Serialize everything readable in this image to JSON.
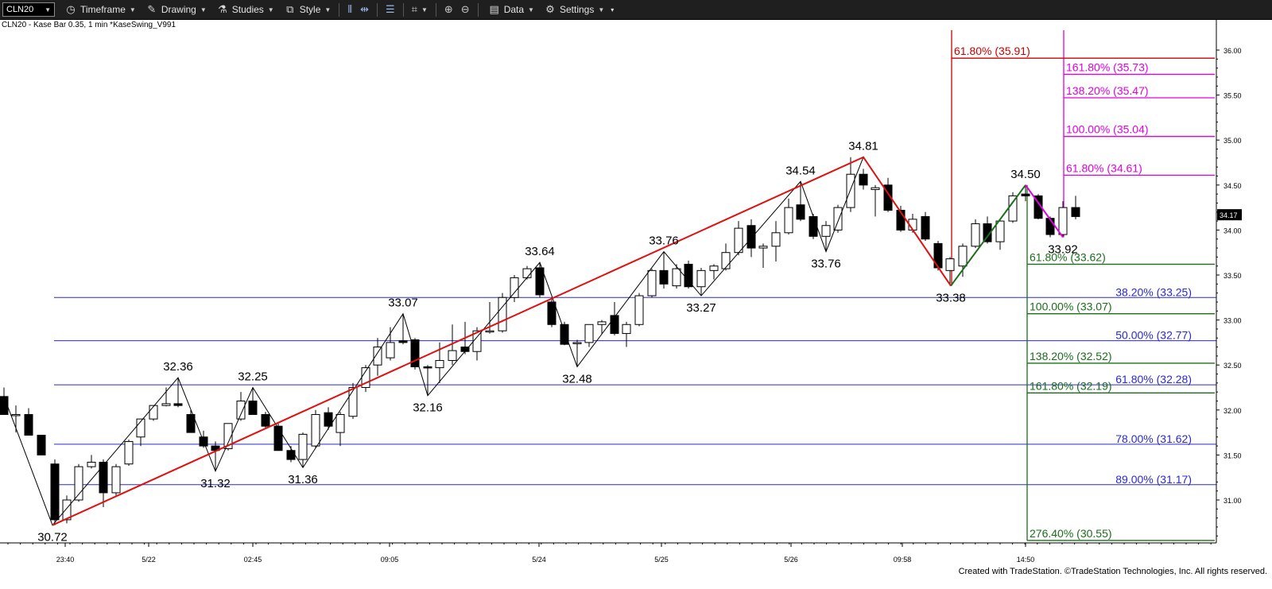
{
  "toolbar": {
    "symbol": "CLN20",
    "timeframe": "Timeframe",
    "drawing": "Drawing",
    "studies": "Studies",
    "style": "Style",
    "data": "Data",
    "settings": "Settings"
  },
  "chart_title": "CLN20 - Kase Bar 0.35, 1 min  *KaseSwing_V991",
  "footer": "Created with TradeStation. ©TradeStation Technologies, Inc. All rights reserved.",
  "colors": {
    "blue_fib": "#2a2ad0",
    "green_fib": "#1a6e1a",
    "magenta_fib": "#e000e0",
    "red_line": "#e01010",
    "red_fib": "#cc0000"
  },
  "chart_data": {
    "type": "candlestick",
    "ylim": [
      30.3,
      36.2
    ],
    "y_ticks": [
      "36.00",
      "35.50",
      "35.00",
      "34.50",
      "34.00",
      "33.50",
      "33.00",
      "32.50",
      "32.00",
      "31.50",
      "31.00"
    ],
    "last_price": "34.17",
    "x_tick_labels": [
      {
        "label": "23:40",
        "x": 82
      },
      {
        "label": "5/22",
        "x": 187
      },
      {
        "label": "02:45",
        "x": 318
      },
      {
        "label": "09:05",
        "x": 490
      },
      {
        "label": "5/24",
        "x": 678
      },
      {
        "label": "5/25",
        "x": 832
      },
      {
        "label": "5/26",
        "x": 995
      },
      {
        "label": "09:58",
        "x": 1135
      },
      {
        "label": "14:50",
        "x": 1290
      }
    ],
    "candles": [
      {
        "x": 5,
        "o": 32.15,
        "h": 32.25,
        "l": 31.95,
        "c": 31.95
      },
      {
        "x": 20,
        "o": 31.95,
        "h": 32.05,
        "l": 31.75,
        "c": 31.95
      },
      {
        "x": 36,
        "o": 31.95,
        "h": 32.02,
        "l": 31.72,
        "c": 31.72
      },
      {
        "x": 52,
        "o": 31.72,
        "h": 31.72,
        "l": 31.5,
        "c": 31.5
      },
      {
        "x": 69,
        "o": 31.4,
        "h": 31.45,
        "l": 30.72,
        "c": 30.78
      },
      {
        "x": 84,
        "o": 30.78,
        "h": 31.05,
        "l": 30.74,
        "c": 31.0
      },
      {
        "x": 99,
        "o": 31.0,
        "h": 31.4,
        "l": 30.98,
        "c": 31.37
      },
      {
        "x": 115,
        "o": 31.37,
        "h": 31.5,
        "l": 31.35,
        "c": 31.42
      },
      {
        "x": 130,
        "o": 31.42,
        "h": 31.45,
        "l": 30.92,
        "c": 31.08
      },
      {
        "x": 146,
        "o": 31.08,
        "h": 31.4,
        "l": 31.05,
        "c": 31.37
      },
      {
        "x": 162,
        "o": 31.4,
        "h": 31.67,
        "l": 31.38,
        "c": 31.65
      },
      {
        "x": 177,
        "o": 31.7,
        "h": 31.9,
        "l": 31.6,
        "c": 31.9
      },
      {
        "x": 193,
        "o": 31.9,
        "h": 32.05,
        "l": 31.88,
        "c": 32.05
      },
      {
        "x": 209,
        "o": 32.05,
        "h": 32.25,
        "l": 32.04,
        "c": 32.07
      },
      {
        "x": 224,
        "o": 32.07,
        "h": 32.36,
        "l": 32.03,
        "c": 32.05
      },
      {
        "x": 240,
        "o": 31.95,
        "h": 32.0,
        "l": 31.75,
        "c": 31.75
      },
      {
        "x": 256,
        "o": 31.7,
        "h": 31.77,
        "l": 31.58,
        "c": 31.6
      },
      {
        "x": 271,
        "o": 31.6,
        "h": 31.65,
        "l": 31.32,
        "c": 31.55
      },
      {
        "x": 287,
        "o": 31.57,
        "h": 31.85,
        "l": 31.55,
        "c": 31.85
      },
      {
        "x": 303,
        "o": 31.9,
        "h": 32.2,
        "l": 31.88,
        "c": 32.1
      },
      {
        "x": 318,
        "o": 32.1,
        "h": 32.25,
        "l": 31.95,
        "c": 31.95
      },
      {
        "x": 334,
        "o": 31.95,
        "h": 31.98,
        "l": 31.8,
        "c": 31.82
      },
      {
        "x": 350,
        "o": 31.82,
        "h": 31.85,
        "l": 31.55,
        "c": 31.55
      },
      {
        "x": 366,
        "o": 31.55,
        "h": 31.6,
        "l": 31.42,
        "c": 31.45
      },
      {
        "x": 381,
        "o": 31.45,
        "h": 31.75,
        "l": 31.36,
        "c": 31.73
      },
      {
        "x": 397,
        "o": 31.6,
        "h": 32.0,
        "l": 31.58,
        "c": 31.95
      },
      {
        "x": 413,
        "o": 31.97,
        "h": 32.03,
        "l": 31.78,
        "c": 31.82
      },
      {
        "x": 428,
        "o": 31.75,
        "h": 31.98,
        "l": 31.6,
        "c": 31.95
      },
      {
        "x": 444,
        "o": 31.93,
        "h": 32.3,
        "l": 31.9,
        "c": 32.25
      },
      {
        "x": 460,
        "o": 32.25,
        "h": 32.5,
        "l": 32.2,
        "c": 32.47
      },
      {
        "x": 475,
        "o": 32.5,
        "h": 32.8,
        "l": 32.38,
        "c": 32.7
      },
      {
        "x": 491,
        "o": 32.58,
        "h": 32.92,
        "l": 32.55,
        "c": 32.75
      },
      {
        "x": 507,
        "o": 32.77,
        "h": 33.07,
        "l": 32.73,
        "c": 32.75
      },
      {
        "x": 522,
        "o": 32.78,
        "h": 32.8,
        "l": 32.45,
        "c": 32.48
      },
      {
        "x": 538,
        "o": 32.48,
        "h": 32.5,
        "l": 32.16,
        "c": 32.47
      },
      {
        "x": 553,
        "o": 32.47,
        "h": 32.75,
        "l": 32.3,
        "c": 32.55
      },
      {
        "x": 569,
        "o": 32.55,
        "h": 32.95,
        "l": 32.5,
        "c": 32.66
      },
      {
        "x": 585,
        "o": 32.7,
        "h": 32.98,
        "l": 32.62,
        "c": 32.65
      },
      {
        "x": 600,
        "o": 32.65,
        "h": 32.92,
        "l": 32.55,
        "c": 32.88
      },
      {
        "x": 616,
        "o": 32.88,
        "h": 33.2,
        "l": 32.85,
        "c": 32.88
      },
      {
        "x": 632,
        "o": 32.88,
        "h": 33.3,
        "l": 32.86,
        "c": 33.25
      },
      {
        "x": 647,
        "o": 33.25,
        "h": 33.5,
        "l": 33.2,
        "c": 33.47
      },
      {
        "x": 663,
        "o": 33.47,
        "h": 33.6,
        "l": 33.45,
        "c": 33.57
      },
      {
        "x": 679,
        "o": 33.58,
        "h": 33.64,
        "l": 33.25,
        "c": 33.28
      },
      {
        "x": 694,
        "o": 33.2,
        "h": 33.25,
        "l": 32.92,
        "c": 32.95
      },
      {
        "x": 710,
        "o": 32.95,
        "h": 32.98,
        "l": 32.72,
        "c": 32.73
      },
      {
        "x": 726,
        "o": 32.75,
        "h": 32.78,
        "l": 32.48,
        "c": 32.75
      },
      {
        "x": 741,
        "o": 32.75,
        "h": 32.95,
        "l": 32.7,
        "c": 32.95
      },
      {
        "x": 757,
        "o": 32.95,
        "h": 33.0,
        "l": 32.85,
        "c": 32.98
      },
      {
        "x": 773,
        "o": 33.05,
        "h": 33.2,
        "l": 32.83,
        "c": 32.85
      },
      {
        "x": 788,
        "o": 32.85,
        "h": 32.98,
        "l": 32.7,
        "c": 32.95
      },
      {
        "x": 804,
        "o": 32.95,
        "h": 33.3,
        "l": 32.93,
        "c": 33.27
      },
      {
        "x": 820,
        "o": 33.27,
        "h": 33.57,
        "l": 33.25,
        "c": 33.55
      },
      {
        "x": 835,
        "o": 33.55,
        "h": 33.76,
        "l": 33.35,
        "c": 33.4
      },
      {
        "x": 851,
        "o": 33.38,
        "h": 33.62,
        "l": 33.35,
        "c": 33.57
      },
      {
        "x": 866,
        "o": 33.62,
        "h": 33.66,
        "l": 33.35,
        "c": 33.37
      },
      {
        "x": 882,
        "o": 33.37,
        "h": 33.58,
        "l": 33.27,
        "c": 33.55
      },
      {
        "x": 898,
        "o": 33.55,
        "h": 33.62,
        "l": 33.45,
        "c": 33.6
      },
      {
        "x": 913,
        "o": 33.57,
        "h": 33.85,
        "l": 33.55,
        "c": 33.75
      },
      {
        "x": 929,
        "o": 33.75,
        "h": 34.1,
        "l": 33.72,
        "c": 34.02
      },
      {
        "x": 945,
        "o": 34.05,
        "h": 34.12,
        "l": 33.7,
        "c": 33.8
      },
      {
        "x": 960,
        "o": 33.8,
        "h": 33.85,
        "l": 33.58,
        "c": 33.82
      },
      {
        "x": 976,
        "o": 33.82,
        "h": 34.1,
        "l": 33.65,
        "c": 33.97
      },
      {
        "x": 992,
        "o": 33.97,
        "h": 34.35,
        "l": 33.95,
        "c": 34.25
      },
      {
        "x": 1007,
        "o": 34.28,
        "h": 34.54,
        "l": 34.1,
        "c": 34.12
      },
      {
        "x": 1023,
        "o": 34.15,
        "h": 34.18,
        "l": 33.9,
        "c": 33.93
      },
      {
        "x": 1039,
        "o": 33.93,
        "h": 34.1,
        "l": 33.76,
        "c": 34.05
      },
      {
        "x": 1054,
        "o": 34.0,
        "h": 34.28,
        "l": 33.97,
        "c": 34.25
      },
      {
        "x": 1070,
        "o": 34.25,
        "h": 34.81,
        "l": 34.2,
        "c": 34.62
      },
      {
        "x": 1086,
        "o": 34.62,
        "h": 34.68,
        "l": 34.45,
        "c": 34.5
      },
      {
        "x": 1101,
        "o": 34.45,
        "h": 34.5,
        "l": 34.15,
        "c": 34.47
      },
      {
        "x": 1117,
        "o": 34.5,
        "h": 34.58,
        "l": 34.2,
        "c": 34.22
      },
      {
        "x": 1133,
        "o": 34.22,
        "h": 34.27,
        "l": 33.98,
        "c": 34.0
      },
      {
        "x": 1148,
        "o": 34.0,
        "h": 34.18,
        "l": 33.97,
        "c": 34.12
      },
      {
        "x": 1164,
        "o": 34.15,
        "h": 34.2,
        "l": 33.88,
        "c": 33.9
      },
      {
        "x": 1180,
        "o": 33.85,
        "h": 33.88,
        "l": 33.55,
        "c": 33.58
      },
      {
        "x": 1195,
        "o": 33.55,
        "h": 33.7,
        "l": 33.38,
        "c": 33.68
      },
      {
        "x": 1211,
        "o": 33.6,
        "h": 33.85,
        "l": 33.48,
        "c": 33.82
      },
      {
        "x": 1227,
        "o": 33.82,
        "h": 34.12,
        "l": 33.8,
        "c": 34.07
      },
      {
        "x": 1242,
        "o": 34.07,
        "h": 34.15,
        "l": 33.85,
        "c": 33.87
      },
      {
        "x": 1258,
        "o": 33.87,
        "h": 34.12,
        "l": 33.78,
        "c": 34.1
      },
      {
        "x": 1274,
        "o": 34.1,
        "h": 34.42,
        "l": 34.08,
        "c": 34.38
      },
      {
        "x": 1290,
        "o": 34.4,
        "h": 34.5,
        "l": 34.32,
        "c": 34.38
      },
      {
        "x": 1306,
        "o": 34.38,
        "h": 34.4,
        "l": 34.12,
        "c": 34.13
      },
      {
        "x": 1321,
        "o": 34.13,
        "h": 34.15,
        "l": 33.92,
        "c": 33.95
      },
      {
        "x": 1337,
        "o": 33.95,
        "h": 34.32,
        "l": 33.92,
        "c": 34.25
      },
      {
        "x": 1353,
        "o": 34.25,
        "h": 34.38,
        "l": 34.12,
        "c": 34.15
      }
    ],
    "swing_labels": [
      {
        "text": "30.72",
        "x": 66,
        "price": 30.72,
        "pos": "below"
      },
      {
        "text": "32.36",
        "x": 224,
        "price": 32.36,
        "pos": "above"
      },
      {
        "text": "31.32",
        "x": 271,
        "price": 31.32,
        "pos": "below"
      },
      {
        "text": "32.25",
        "x": 318,
        "price": 32.25,
        "pos": "above"
      },
      {
        "text": "31.36",
        "x": 381,
        "price": 31.36,
        "pos": "below"
      },
      {
        "text": "33.07",
        "x": 507,
        "price": 33.07,
        "pos": "above"
      },
      {
        "text": "32.16",
        "x": 538,
        "price": 32.16,
        "pos": "below"
      },
      {
        "text": "33.64",
        "x": 679,
        "price": 33.64,
        "pos": "above"
      },
      {
        "text": "32.48",
        "x": 726,
        "price": 32.48,
        "pos": "below"
      },
      {
        "text": "33.76",
        "x": 835,
        "price": 33.76,
        "pos": "above"
      },
      {
        "text": "33.27",
        "x": 882,
        "price": 33.27,
        "pos": "below"
      },
      {
        "text": "34.54",
        "x": 1007,
        "price": 34.54,
        "pos": "above"
      },
      {
        "text": "33.76",
        "x": 1039,
        "price": 33.76,
        "pos": "below"
      },
      {
        "text": "34.81",
        "x": 1086,
        "price": 34.81,
        "pos": "above"
      },
      {
        "text": "33.38",
        "x": 1196,
        "price": 33.38,
        "pos": "below"
      },
      {
        "text": "34.50",
        "x": 1290,
        "price": 34.5,
        "pos": "above"
      },
      {
        "text": "33.92",
        "x": 1337,
        "price": 33.92,
        "pos": "below"
      }
    ],
    "zigzag": [
      {
        "x": 5,
        "price": 32.15
      },
      {
        "x": 66,
        "price": 30.72
      },
      {
        "x": 224,
        "price": 32.36
      },
      {
        "x": 271,
        "price": 31.32
      },
      {
        "x": 318,
        "price": 32.25
      },
      {
        "x": 381,
        "price": 31.36
      },
      {
        "x": 507,
        "price": 33.07
      },
      {
        "x": 538,
        "price": 32.16
      },
      {
        "x": 679,
        "price": 33.64
      },
      {
        "x": 726,
        "price": 32.48
      },
      {
        "x": 835,
        "price": 33.76
      },
      {
        "x": 882,
        "price": 33.27
      },
      {
        "x": 1007,
        "price": 34.54
      },
      {
        "x": 1039,
        "price": 33.76
      },
      {
        "x": 1086,
        "price": 34.81
      }
    ],
    "swing_lines": [
      {
        "color_key": "red_line",
        "points": [
          {
            "x": 66,
            "price": 30.72
          },
          {
            "x": 1086,
            "price": 34.81
          },
          {
            "x": 1196,
            "price": 33.38
          }
        ]
      },
      {
        "color_key": "green_fib",
        "points": [
          {
            "x": 1196,
            "price": 33.38
          },
          {
            "x": 1290,
            "price": 34.5
          }
        ]
      },
      {
        "color_key": "magenta_fib",
        "points": [
          {
            "x": 1290,
            "price": 34.5
          },
          {
            "x": 1337,
            "price": 33.92
          }
        ]
      }
    ],
    "fib_levels": {
      "blue": [
        {
          "label": "38.20% (33.25)",
          "price": 33.25
        },
        {
          "label": "50.00% (32.77)",
          "price": 32.77
        },
        {
          "label": "61.80% (32.28)",
          "price": 32.28
        },
        {
          "label": "78.00% (31.62)",
          "price": 31.62
        },
        {
          "label": "89.00% (31.17)",
          "price": 31.17
        }
      ],
      "green": [
        {
          "label": "61.80% (33.62)",
          "price": 33.62
        },
        {
          "label": "100.00% (33.07)",
          "price": 33.07
        },
        {
          "label": "138.20% (32.52)",
          "price": 32.52
        },
        {
          "label": "161.80% (32.19)",
          "price": 32.19
        },
        {
          "label": "276.40% (30.55)",
          "price": 30.55
        }
      ],
      "magenta": [
        {
          "label": "161.80% (35.73)",
          "price": 35.73
        },
        {
          "label": "138.20% (35.47)",
          "price": 35.47
        },
        {
          "label": "100.00% (35.04)",
          "price": 35.04
        },
        {
          "label": "61.80% (34.61)",
          "price": 34.61
        }
      ],
      "red": [
        {
          "label": "61.80% (35.91)",
          "price": 35.91
        }
      ]
    }
  }
}
